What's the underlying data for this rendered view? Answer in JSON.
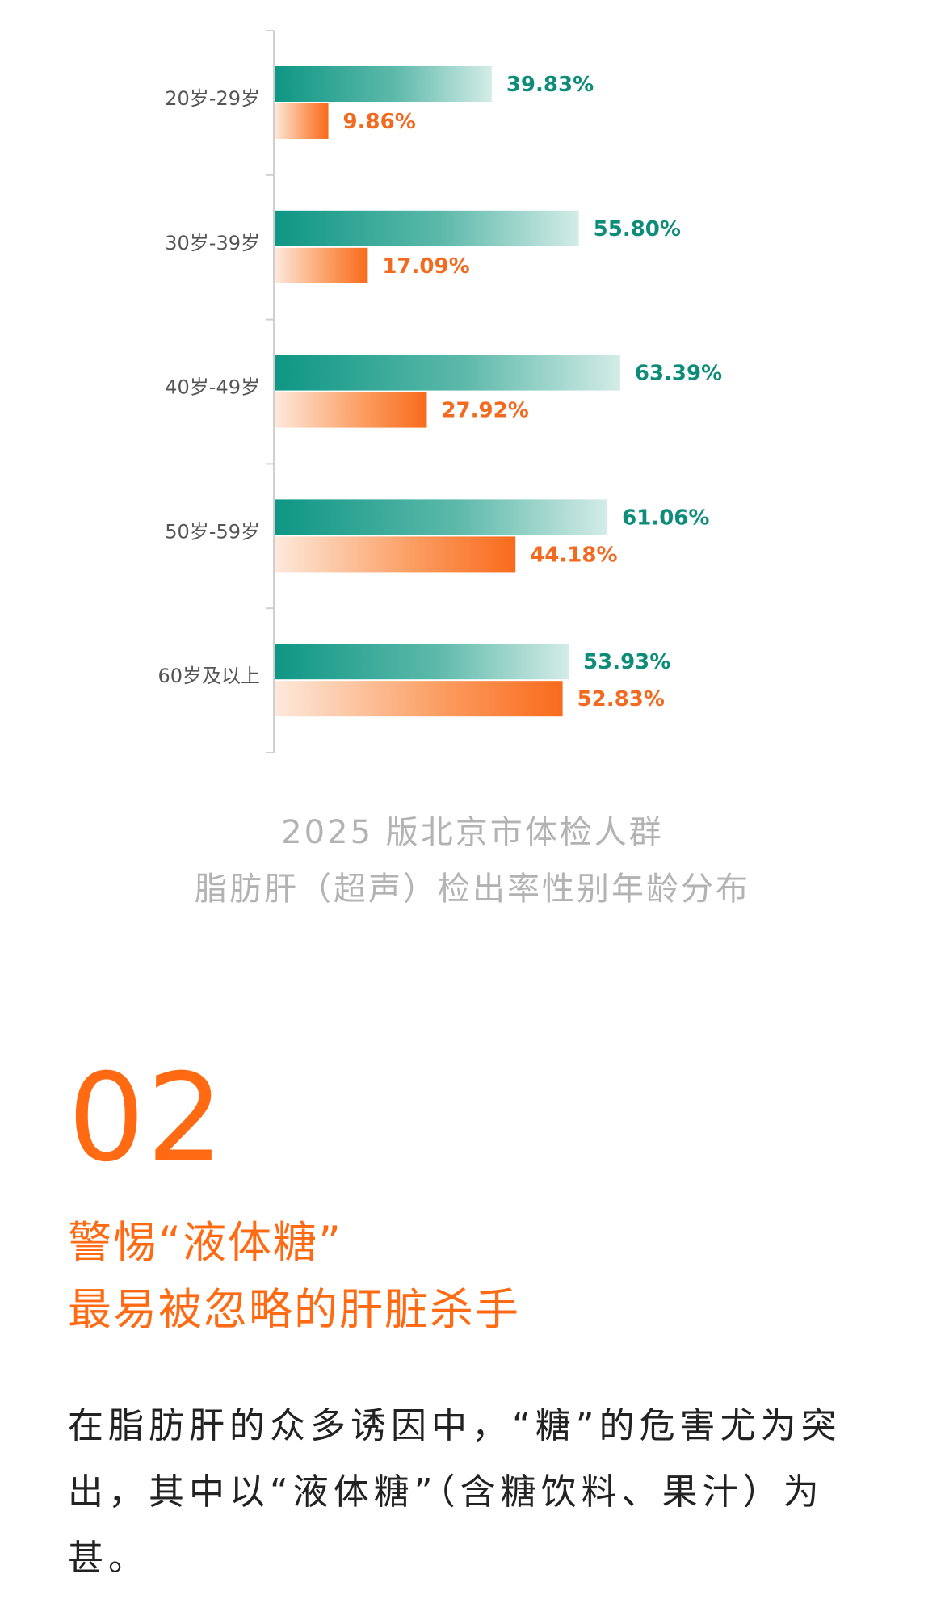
{
  "chart_data": {
    "type": "bar",
    "orientation": "horizontal",
    "categories": [
      "20岁-29岁",
      "30岁-39岁",
      "40岁-49岁",
      "50岁-59岁",
      "60岁及以上"
    ],
    "series": [
      {
        "values": [
          39.83,
          55.8,
          63.39,
          61.06,
          53.93
        ],
        "labels": [
          "39.83%",
          "55.80%",
          "63.39%",
          "61.06%",
          "53.93%"
        ],
        "color": "#0e9684"
      },
      {
        "values": [
          9.86,
          17.09,
          27.92,
          44.18,
          52.83
        ],
        "labels": [
          "9.86%",
          "17.09%",
          "27.92%",
          "44.18%",
          "52.83%"
        ],
        "color": "#f96b1d"
      }
    ],
    "xlim": [
      0,
      100
    ],
    "grid": false,
    "legend": "none"
  },
  "caption": {
    "line1": "2025 版北京市体检人群",
    "line2": "脂肪肝（超声）检出率性别年龄分布"
  },
  "section": {
    "number": "02",
    "title_line1": "警惕“液体糖”",
    "title_line2": "最易被忽略的肝脏杀手"
  },
  "body": {
    "paragraph": "在脂肪肝的众多诱因中，“糖”的危害尤为突出，其中以“液体糖”（含糖饮料、果汁）为甚。"
  },
  "colors": {
    "accent": "#ff6a13",
    "teal": "#0e9684",
    "orange": "#f96b1d",
    "caption": "#b3b3b3",
    "text": "#222222"
  }
}
